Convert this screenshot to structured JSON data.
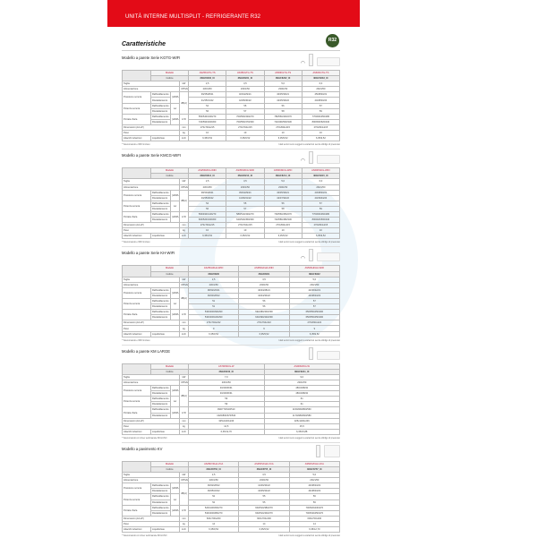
{
  "header": {
    "title": "UNITÀ INTERNE MULTISPLIT - REFRIGERANTE R32"
  },
  "page_title": "Caratteristiche",
  "badge": "R32",
  "colors": {
    "brand_red": "#e30b17",
    "model_red": "#c21a3a"
  },
  "row_labels": {
    "modello": "Modello",
    "codice": "Codice",
    "taglia": "Taglia",
    "alimentazione": "Alimentazione",
    "pressione": "Pressione sonora",
    "potenza": "Potenza sonora",
    "portata": "Portata d'aria",
    "dimensioni": "Dimensioni (AxLxP)",
    "peso": "Peso",
    "attacchi": "Attacchi tubazioni",
    "raff": "Raffreddamento",
    "risc": "Riscaldamento",
    "liqgas": "Liquido/Gas",
    "hml": "(H/M/L/Q)",
    "db": "dB(A)",
    "lw": "Lw",
    "u_kw": "kW",
    "u_v": "V/Ph/Hz",
    "u_m3": "m³/h",
    "u_mm": "mm",
    "u_kg": "kg",
    "u_inch": "inch"
  },
  "sections": [
    {
      "title": "Modello a parete Serie KGTG-WIFI",
      "unit": "wall",
      "wifi": true,
      "models": [
        "AS25KGTG-TS",
        "AS35KGTG-TS",
        "AS50KGTG-TS",
        "AS60KGTG-TS"
      ],
      "codes": [
        "3NGF8230_IX",
        "3NGF8231_IX",
        "3NGF8232_IX",
        "3NGF8233_IX"
      ],
      "taglia": [
        "2,5",
        "3,5",
        "5,0",
        "6,0"
      ],
      "alim": [
        "230/1/50",
        "230/1/50",
        "230/1/50",
        "230/1/50"
      ],
      "pres_raff": [
        "39/35/28/21",
        "40/34/29/21",
        "40/35/30/21",
        "45/38/33/21"
      ],
      "pres_risc": [
        "41/35/31/22",
        "42/35/30/22",
        "42/35/30/22",
        "44/38/33/24"
      ],
      "pot_raff": [
        "54",
        "55",
        "56",
        "57"
      ],
      "pot_risc": [
        "56",
        "57",
        "58",
        "59"
      ],
      "port_raff": [
        "550/540/430/270",
        "700/560/430/270",
        "780/560/430/270",
        "770/600/450/280"
      ],
      "port_risc": [
        "720/590/460/300",
        "700/550/470/300",
        "720/490/530/330",
        "800/500/520/340"
      ],
      "dim": [
        "270x794x215",
        "270x794x215",
        "270x834x215",
        "276x834x215"
      ],
      "peso": [
        "10",
        "10",
        "10",
        "10"
      ],
      "att": [
        "6,35/9,52",
        "6,35/9,52",
        "6,35/9,52",
        "6,35/9,52"
      ],
      "note_left": "* Telecomando e WIFI incluso",
      "note_right": "I dati tecnici sono soggetti a variazioni senza obbligo di preavviso"
    },
    {
      "title": "Modello a parete Serie KMCG-WIFI",
      "unit": "wall",
      "wifi": true,
      "models": [
        "AS25KMCG-WIFI",
        "AS35KMCG-WIFI",
        "AS50KMCG-WIFI",
        "AS60KMCG-WIFI"
      ],
      "codes": [
        "3NGF8212_IX",
        "3NGF8213_IX",
        "3NGF8214_IX",
        "3NGF8215_IX"
      ],
      "taglia": [
        "2,5",
        "3,5",
        "5,0",
        "6,0"
      ],
      "alim": [
        "230/1/50",
        "230/1/50",
        "230/1/50",
        "230/1/50"
      ],
      "pres_raff": [
        "38/33/28/21",
        "39/34/29/21",
        "40/35/30/21",
        "43/38/33/21"
      ],
      "pres_risc": [
        "40/35/30/22",
        "41/36/31/22",
        "42/37/32/22",
        "44/39/34/24"
      ],
      "pot_raff": [
        "54",
        "55",
        "56",
        "57"
      ],
      "pot_risc": [
        "56",
        "57",
        "58",
        "59"
      ],
      "port_raff": [
        "560/490/410/270",
        "580/510/430/270",
        "700/560/450/270",
        "770/600/460/280"
      ],
      "port_risc": [
        "600/520/430/300",
        "620/540/450/300",
        "720/580/480/330",
        "800/620/500/340"
      ],
      "dim": [
        "270x794x215",
        "270x794x215",
        "270x834x215",
        "276x834x215"
      ],
      "peso": [
        "10",
        "10",
        "10",
        "10"
      ],
      "att": [
        "6,35/9,52",
        "6,35/9,52",
        "6,35/9,52",
        "6,35/9,52"
      ],
      "note_left": "* Telecomando e WIFI incluso",
      "note_right": "I dati tecnici sono soggetti a variazioni senza obbligo di preavviso"
    },
    {
      "title": "Modello a parete Serie KH-WIFI",
      "unit": "wall",
      "wifi": true,
      "models": [
        "AS25KHFHA-WIFI",
        "AS35KHFHA-WIFI",
        "AS50KHFHA-WIFI"
      ],
      "codes": [
        "3NGF8900",
        "3NGF8901",
        "3NGF8902"
      ],
      "taglia": [
        "2,5",
        "3,5",
        "5,0"
      ],
      "alim": [
        "230/1/50",
        "230/1/50",
        "230/1/50"
      ],
      "pres_raff": [
        "38/32/26/21",
        "40/33/28/21",
        "42/36/32/21"
      ],
      "pres_risc": [
        "39/33/28/22",
        "42/34/30/22",
        "43/38/33/22"
      ],
      "pot_raff": [
        "51",
        "56",
        "57"
      ],
      "pot_risc": [
        "51",
        "56",
        "57"
      ],
      "port_raff": [
        "530/460/390/290",
        "590/480/400/290",
        "650/550/450/290"
      ],
      "port_risc": [
        "530/460/420/290",
        "640/490/420/290",
        "650/550/450/290"
      ],
      "dim": [
        "270x794x222",
        "270x794x222",
        "270x834x222"
      ],
      "peso": [
        "9",
        "9",
        "9"
      ],
      "att": [
        "6,35/9,52",
        "6,35/9,52",
        "6,35/9,52"
      ],
      "note_left": "* Telecomando e WIFI incluso",
      "note_right": "I dati tecnici sono soggetti a variazioni senza obbligo di preavviso"
    },
    {
      "title": "Modello a parete KM LARGE",
      "unit": "wall",
      "wifi": false,
      "models": [
        "AS70KMCG-W",
        "AS90KMCG-W"
      ],
      "codes": [
        "3NGF8240_IX",
        "3NGF8241_IX"
      ],
      "taglia": [
        "7,0",
        "9,0"
      ],
      "alim": [
        "230/1/50",
        "230/1/50"
      ],
      "pres_raff": [
        "46/40/36/31",
        "48/43/38/32"
      ],
      "pres_risc": [
        "46/40/36/31",
        "48/43/38/32"
      ],
      "pot_raff": [
        "59",
        "61"
      ],
      "pot_risc": [
        "59",
        "61"
      ],
      "port_raff": [
        "990/770/640/510",
        "1150/960/800/560"
      ],
      "port_risc": [
        "1020/800/670/540",
        "1170/980/820/580"
      ],
      "dim": [
        "325x1100x246",
        "325x1100x246"
      ],
      "peso": [
        "14,5",
        "15,5"
      ],
      "att": [
        "6,35/12,70",
        "6,35/15,88"
      ],
      "note_left": "* Telecomando con timer settimanale INCLUSO",
      "note_right": "I dati tecnici sono soggetti a variazioni senza obbligo di preavviso"
    },
    {
      "title": "Modello a pavimento KV",
      "unit": "floor",
      "wifi": false,
      "models": [
        "AS25KVFHA-VCA",
        "AS35KVFHA-VCA",
        "AS50KVFHA-VCA"
      ],
      "codes": [
        "3NGF8750_IX",
        "3NGF8755_IX",
        "3NGF8757_IX"
      ],
      "taglia": [
        "2,5",
        "3,5",
        "5,0"
      ],
      "alim": [
        "230/1/50",
        "230/1/50",
        "230/1/50"
      ],
      "pres_raff": [
        "39/32/28/22",
        "41/36/30/22",
        "43/38/33/22"
      ],
      "pres_risc": [
        "39/35/32/22",
        "42/35/32/22",
        "44/38/33/22"
      ],
      "pot_raff": [
        "52",
        "55",
        "56"
      ],
      "pot_risc": [
        "52",
        "55",
        "56"
      ],
      "port_raff": [
        "520/440/360/270",
        "600/510/380/270",
        "700/520/430/270"
      ],
      "port_risc": [
        "530/460/380/270",
        "600/510/400/270",
        "700/540/450/270"
      ],
      "dim": [
        "600x700x200",
        "600x700x200",
        "600x700x200"
      ],
      "peso": [
        "14",
        "14",
        "14"
      ],
      "att": [
        "6,35/9,52",
        "6,35/9,52",
        "6,35/12,70"
      ],
      "note_left": "* Telecomando con timer settimanale INCLUSO",
      "note_right": "I dati tecnici sono soggetti a variazioni senza obbligo di preavviso"
    }
  ]
}
